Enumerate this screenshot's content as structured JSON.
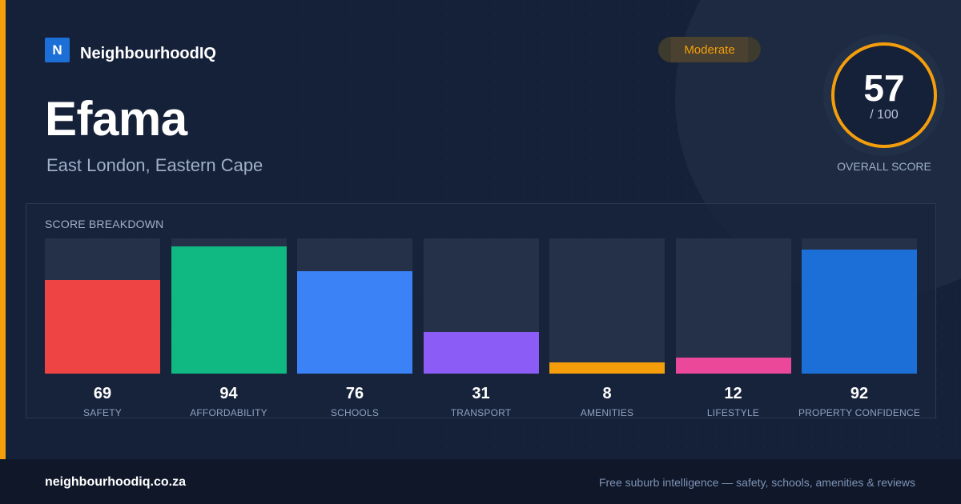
{
  "brand": {
    "logo_letter": "N",
    "name": "NeighbourhoodIQ"
  },
  "suburb": {
    "name": "Efama",
    "location": "East London, Eastern Cape"
  },
  "badge": {
    "label": "Moderate",
    "color": "#f59e0b"
  },
  "overall": {
    "score": "57",
    "max": "/ 100",
    "caption": "OVERALL SCORE",
    "color": "#f59e0b"
  },
  "breakdown": {
    "title": "SCORE BREAKDOWN"
  },
  "chart_data": {
    "type": "bar",
    "categories": [
      "SAFETY",
      "AFFORDABILITY",
      "SCHOOLS",
      "TRANSPORT",
      "AMENITIES",
      "LIFESTYLE",
      "PROPERTY CONFIDENCE"
    ],
    "values": [
      69,
      94,
      76,
      31,
      8,
      12,
      92
    ],
    "colors": [
      "#ef4444",
      "#10b981",
      "#3b82f6",
      "#8b5cf6",
      "#f59e0b",
      "#ec4899",
      "#1d6fd8"
    ],
    "ylim": [
      0,
      100
    ]
  },
  "footer": {
    "url": "neighbourhoodiq.co.za",
    "tagline": "Free suburb intelligence — safety, schools, amenities & reviews"
  }
}
